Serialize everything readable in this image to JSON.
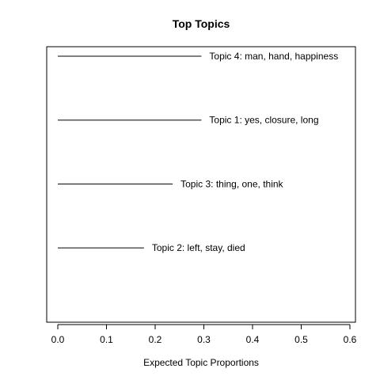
{
  "chart_data": {
    "type": "bar",
    "orientation": "horizontal",
    "title": "Top Topics",
    "xlabel": "Expected Topic Proportions",
    "ylabel": "",
    "xlim": [
      0,
      0.6
    ],
    "xticks": [
      "0.0",
      "0.1",
      "0.2",
      "0.3",
      "0.4",
      "0.5",
      "0.6"
    ],
    "grid": false,
    "legend": "none",
    "categories": [
      "Topic 4: man, hand, happiness",
      "Topic 1: yes, closure, long",
      "Topic 3: thing, one, think",
      "Topic 2: left, stay, died"
    ],
    "values": [
      0.295,
      0.295,
      0.236,
      0.177
    ],
    "line_color": "#000000"
  }
}
